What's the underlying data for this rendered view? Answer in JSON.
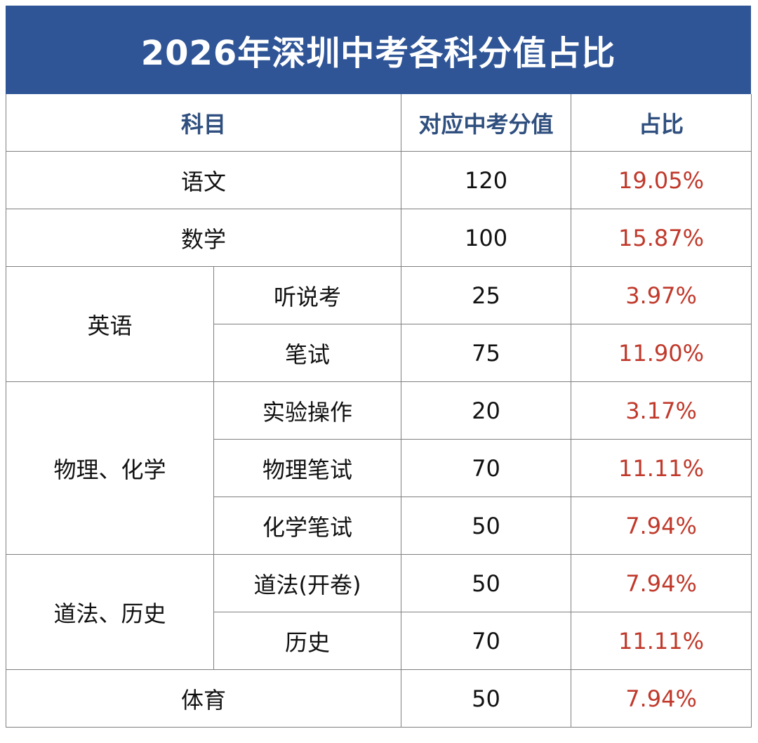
{
  "title": "2026年深圳中考各科分值占比",
  "header": {
    "subject": "科目",
    "score": "对应中考分值",
    "ratio": "占比"
  },
  "rows": {
    "chinese": {
      "subject": "语文",
      "score": "120",
      "ratio": "19.05%"
    },
    "math": {
      "subject": "数学",
      "score": "100",
      "ratio": "15.87%"
    },
    "english": {
      "group": "英语",
      "listening": {
        "sub": "听说考",
        "score": "25",
        "ratio": "3.97%"
      },
      "written": {
        "sub": "笔试",
        "score": "75",
        "ratio": "11.90%"
      }
    },
    "physchem": {
      "group": "物理、化学",
      "lab": {
        "sub": "实验操作",
        "score": "20",
        "ratio": "3.17%"
      },
      "physics": {
        "sub": "物理笔试",
        "score": "70",
        "ratio": "11.11%"
      },
      "chemistry": {
        "sub": "化学笔试",
        "score": "50",
        "ratio": "7.94%"
      }
    },
    "morality_history": {
      "group": "道法、历史",
      "morality": {
        "sub": "道法(开卷)",
        "score": "50",
        "ratio": "7.94%"
      },
      "history": {
        "sub": "历史",
        "score": "70",
        "ratio": "11.11%"
      }
    },
    "pe": {
      "subject": "体育",
      "score": "50",
      "ratio": "7.94%"
    }
  },
  "colors": {
    "title_bg": "#2f5597",
    "header_text": "#2f4f7f",
    "ratio_text": "#c0392b",
    "grid": "#7f7f7f"
  }
}
